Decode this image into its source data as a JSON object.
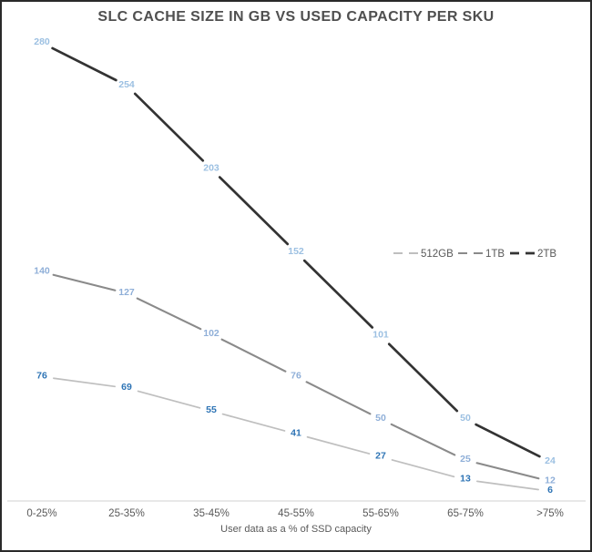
{
  "chart_data": {
    "type": "line",
    "title": "SLC CACHE SIZE IN GB VS USED CAPACITY PER SKU",
    "xlabel": "User data as a % of SSD capacity",
    "ylabel": "",
    "categories": [
      "0-25%",
      "25-35%",
      "35-45%",
      "45-55%",
      "55-65%",
      "65-75%",
      ">75%"
    ],
    "series": [
      {
        "name": "512GB",
        "values": [
          76,
          69,
          55,
          41,
          27,
          13,
          6
        ],
        "line_color": "#bfbfbf",
        "label_color": "#2e74b5",
        "line_width": 1.7
      },
      {
        "name": "1TB",
        "values": [
          140,
          127,
          102,
          76,
          50,
          25,
          12
        ],
        "line_color": "#8a8a8a",
        "label_color": "#8fafd8",
        "line_width": 2.1
      },
      {
        "name": "2TB",
        "values": [
          280,
          254,
          203,
          152,
          101,
          50,
          24
        ],
        "line_color": "#333333",
        "label_color": "#9cc0e2",
        "line_width": 2.7
      }
    ],
    "ylim": [
      0,
      280
    ],
    "grid": false,
    "line_style": "dashed",
    "data_labels_shown": true,
    "legend_position": "middle-right",
    "axis_line_color": "#d9d9d9",
    "tick_label_color": "#595959",
    "title_color": "#4f4f4f"
  }
}
